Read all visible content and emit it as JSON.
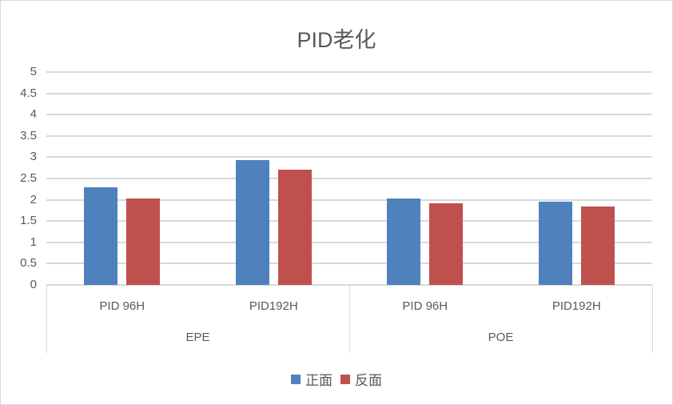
{
  "chart_data": {
    "type": "bar",
    "title": "PID老化",
    "xlabel": "",
    "ylabel": "",
    "ylim": [
      0,
      5
    ],
    "yticks": [
      "0",
      "0.5",
      "1",
      "1.5",
      "2",
      "2.5",
      "3",
      "3.5",
      "4",
      "4.5",
      "5"
    ],
    "grid": true,
    "legend_position": "bottom",
    "category_groups": [
      {
        "group": "EPE",
        "categories": [
          "PID 96H",
          "PID192H"
        ]
      },
      {
        "group": "POE",
        "categories": [
          "PID 96H",
          "PID192H"
        ]
      }
    ],
    "categories": [
      "EPE PID 96H",
      "EPE PID192H",
      "POE PID 96H",
      "POE PID192H"
    ],
    "series": [
      {
        "name": "正面",
        "color": "#4f81bd",
        "values": [
          2.3,
          2.93,
          2.03,
          1.96
        ]
      },
      {
        "name": "反面",
        "color": "#c0504d",
        "values": [
          2.03,
          2.71,
          1.92,
          1.84
        ]
      }
    ]
  }
}
